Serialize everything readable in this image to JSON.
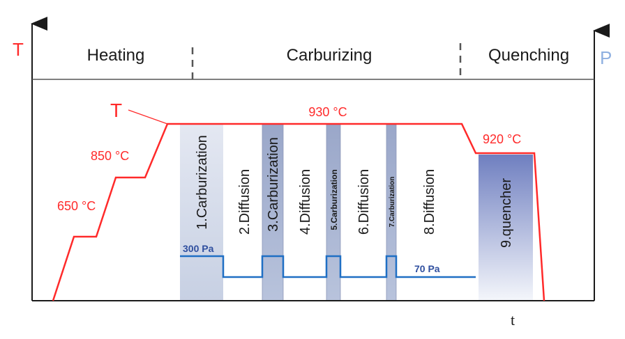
{
  "axes": {
    "left_label": "T",
    "right_label": "P",
    "x_label": "t"
  },
  "header": {
    "phases": [
      {
        "label": "Heating"
      },
      {
        "label": "Carburizing"
      },
      {
        "label": "Quenching"
      }
    ]
  },
  "temperature": {
    "curve_label": "T",
    "step1": "650 °C",
    "step2": "850 °C",
    "plateau": "930 °C",
    "quench_hold": "920 °C"
  },
  "pressure": {
    "high": "300 Pa",
    "low": "70 Pa"
  },
  "stages": [
    {
      "label": "1.Carburization"
    },
    {
      "label": "2.Diffusion"
    },
    {
      "label": "3.Carburization"
    },
    {
      "label": "4.Diffusion"
    },
    {
      "label": "5.Carburization"
    },
    {
      "label": "6.Diffusion"
    },
    {
      "label": "7.Carburization"
    },
    {
      "label": "8.Diffusion"
    },
    {
      "label": "9.quencher"
    }
  ],
  "colors": {
    "temperature": "#ff2a2a",
    "pressure": "#1f6fc4",
    "pressure_label": "#2f4f9f",
    "right_axis_label": "#8fb0e0",
    "axis": "#1a1a1a"
  }
}
